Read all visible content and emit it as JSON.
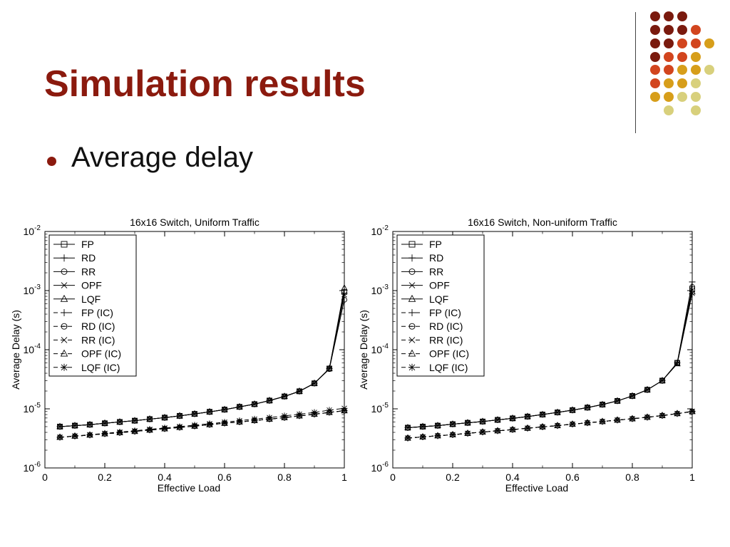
{
  "slide": {
    "title": "Simulation results",
    "bullet": "Average delay",
    "colors": {
      "title": "#8b1a0e",
      "bullet": "#8b1a0e"
    },
    "dot_palette": [
      "#7a1a0e",
      "#d2451e",
      "#d79e1a",
      "#d8d07c"
    ]
  },
  "chart_data": [
    {
      "type": "line",
      "title": "16x16 Switch, Uniform Traffic",
      "xlabel": "Effective Load",
      "ylabel": "Average Delay (s)",
      "xlim": [
        0,
        1
      ],
      "ylim": [
        1e-06,
        0.01
      ],
      "yscale": "log",
      "xticks": [
        "0",
        "0.2",
        "0.4",
        "0.6",
        "0.8",
        "1"
      ],
      "yticks": [
        {
          "base": "10",
          "exp": "-2"
        },
        {
          "base": "10",
          "exp": "-3"
        },
        {
          "base": "10",
          "exp": "-4"
        },
        {
          "base": "10",
          "exp": "-5"
        },
        {
          "base": "10",
          "exp": "-6"
        }
      ],
      "legend_position": "top-left",
      "grid": false,
      "x": [
        0.05,
        0.1,
        0.15,
        0.2,
        0.25,
        0.3,
        0.35,
        0.4,
        0.45,
        0.5,
        0.55,
        0.6,
        0.65,
        0.7,
        0.75,
        0.8,
        0.85,
        0.9,
        0.95,
        1.0
      ],
      "series": [
        {
          "name": "FP",
          "dash": "solid",
          "marker": "square",
          "values": [
            5e-06,
            5.2e-06,
            5.4e-06,
            5.7e-06,
            6e-06,
            6.3e-06,
            6.7e-06,
            7.1e-06,
            7.6e-06,
            8.2e-06,
            8.9e-06,
            9.7e-06,
            1.08e-05,
            1.2e-05,
            1.38e-05,
            1.62e-05,
            1.98e-05,
            2.7e-05,
            4.8e-05,
            0.00095
          ]
        },
        {
          "name": "RD",
          "dash": "solid",
          "marker": "plus",
          "values": [
            5e-06,
            5.2e-06,
            5.4e-06,
            5.7e-06,
            6e-06,
            6.3e-06,
            6.7e-06,
            7.1e-06,
            7.6e-06,
            8.2e-06,
            8.9e-06,
            9.7e-06,
            1.08e-05,
            1.2e-05,
            1.38e-05,
            1.62e-05,
            1.98e-05,
            2.7e-05,
            4.8e-05,
            0.0009
          ]
        },
        {
          "name": "RR",
          "dash": "solid",
          "marker": "circle",
          "values": [
            5e-06,
            5.2e-06,
            5.4e-06,
            5.7e-06,
            6e-06,
            6.3e-06,
            6.7e-06,
            7.1e-06,
            7.6e-06,
            8.2e-06,
            8.9e-06,
            9.7e-06,
            1.08e-05,
            1.2e-05,
            1.38e-05,
            1.62e-05,
            1.98e-05,
            2.7e-05,
            4.7e-05,
            0.0007
          ]
        },
        {
          "name": "OPF",
          "dash": "solid",
          "marker": "x",
          "values": [
            5e-06,
            5.2e-06,
            5.4e-06,
            5.7e-06,
            6e-06,
            6.3e-06,
            6.7e-06,
            7.1e-06,
            7.6e-06,
            8.2e-06,
            8.9e-06,
            9.7e-06,
            1.08e-05,
            1.2e-05,
            1.38e-05,
            1.62e-05,
            1.98e-05,
            2.7e-05,
            4.8e-05,
            0.00085
          ]
        },
        {
          "name": "LQF",
          "dash": "solid",
          "marker": "triangle",
          "values": [
            5e-06,
            5.2e-06,
            5.4e-06,
            5.7e-06,
            6e-06,
            6.3e-06,
            6.7e-06,
            7.1e-06,
            7.6e-06,
            8.2e-06,
            8.9e-06,
            9.7e-06,
            1.08e-05,
            1.2e-05,
            1.38e-05,
            1.62e-05,
            1.98e-05,
            2.7e-05,
            4.8e-05,
            0.0011
          ]
        },
        {
          "name": "FP (IC)",
          "dash": "dashed",
          "marker": "plus",
          "values": [
            3.3e-06,
            3.45e-06,
            3.6e-06,
            3.78e-06,
            3.95e-06,
            4.15e-06,
            4.38e-06,
            4.6e-06,
            4.85e-06,
            5.1e-06,
            5.4e-06,
            5.7e-06,
            6e-06,
            6.35e-06,
            6.7e-06,
            7.1e-06,
            7.6e-06,
            8.1e-06,
            8.7e-06,
            9.3e-06
          ]
        },
        {
          "name": "RD (IC)",
          "dash": "dashed",
          "marker": "circle-minus",
          "values": [
            3.3e-06,
            3.45e-06,
            3.6e-06,
            3.78e-06,
            3.95e-06,
            4.15e-06,
            4.38e-06,
            4.6e-06,
            4.85e-06,
            5.1e-06,
            5.4e-06,
            5.7e-06,
            6e-06,
            6.35e-06,
            6.7e-06,
            7.1e-06,
            7.6e-06,
            8.1e-06,
            8.7e-06,
            9.3e-06
          ]
        },
        {
          "name": "RR (IC)",
          "dash": "dashed",
          "marker": "x",
          "values": [
            3.3e-06,
            3.45e-06,
            3.6e-06,
            3.78e-06,
            3.95e-06,
            4.15e-06,
            4.38e-06,
            4.6e-06,
            4.85e-06,
            5.1e-06,
            5.4e-06,
            5.7e-06,
            6e-06,
            6.35e-06,
            6.7e-06,
            7.1e-06,
            7.6e-06,
            8.1e-06,
            8.7e-06,
            9.3e-06
          ]
        },
        {
          "name": "OPF (IC)",
          "dash": "dashed",
          "marker": "triangle",
          "values": [
            3.3e-06,
            3.45e-06,
            3.6e-06,
            3.78e-06,
            3.95e-06,
            4.15e-06,
            4.38e-06,
            4.6e-06,
            4.85e-06,
            5.1e-06,
            5.4e-06,
            5.7e-06,
            6e-06,
            6.35e-06,
            6.7e-06,
            7.1e-06,
            7.6e-06,
            8.1e-06,
            8.7e-06,
            9.3e-06
          ]
        },
        {
          "name": "LQF (IC)",
          "dash": "dashed",
          "marker": "asterisk",
          "values": [
            3.3e-06,
            3.48e-06,
            3.65e-06,
            3.85e-06,
            4.05e-06,
            4.25e-06,
            4.5e-06,
            4.75e-06,
            5e-06,
            5.3e-06,
            5.6e-06,
            5.95e-06,
            6.3e-06,
            6.7e-06,
            7.1e-06,
            7.6e-06,
            8.1e-06,
            8.7e-06,
            9.5e-06,
            1.02e-05
          ]
        }
      ]
    },
    {
      "type": "line",
      "title": "16x16 Switch, Non-uniform Traffic",
      "xlabel": "Effective Load",
      "ylabel": "Average Delay (s)",
      "xlim": [
        0,
        1
      ],
      "ylim": [
        1e-06,
        0.01
      ],
      "yscale": "log",
      "xticks": [
        "0",
        "0.2",
        "0.4",
        "0.6",
        "0.8",
        "1"
      ],
      "yticks": [
        {
          "base": "10",
          "exp": "-2"
        },
        {
          "base": "10",
          "exp": "-3"
        },
        {
          "base": "10",
          "exp": "-4"
        },
        {
          "base": "10",
          "exp": "-5"
        },
        {
          "base": "10",
          "exp": "-6"
        }
      ],
      "legend_position": "top-left",
      "grid": false,
      "x": [
        0.05,
        0.1,
        0.15,
        0.2,
        0.25,
        0.3,
        0.35,
        0.4,
        0.45,
        0.5,
        0.55,
        0.6,
        0.65,
        0.7,
        0.75,
        0.8,
        0.85,
        0.9,
        0.95,
        1.0
      ],
      "series": [
        {
          "name": "FP",
          "dash": "solid",
          "marker": "square",
          "values": [
            4.8e-06,
            5e-06,
            5.2e-06,
            5.5e-06,
            5.8e-06,
            6.1e-06,
            6.5e-06,
            6.9e-06,
            7.4e-06,
            8e-06,
            8.7e-06,
            9.5e-06,
            1.05e-05,
            1.18e-05,
            1.36e-05,
            1.65e-05,
            2.1e-05,
            3e-05,
            6e-05,
            0.00105
          ]
        },
        {
          "name": "RD",
          "dash": "solid",
          "marker": "plus",
          "values": [
            4.8e-06,
            5e-06,
            5.2e-06,
            5.5e-06,
            5.8e-06,
            6.1e-06,
            6.5e-06,
            6.9e-06,
            7.4e-06,
            8e-06,
            8.7e-06,
            9.5e-06,
            1.05e-05,
            1.18e-05,
            1.36e-05,
            1.65e-05,
            2.1e-05,
            3e-05,
            6e-05,
            0.0014
          ]
        },
        {
          "name": "RR",
          "dash": "solid",
          "marker": "circle",
          "values": [
            4.8e-06,
            5e-06,
            5.2e-06,
            5.5e-06,
            5.8e-06,
            6.1e-06,
            6.5e-06,
            6.9e-06,
            7.4e-06,
            8e-06,
            8.7e-06,
            9.5e-06,
            1.05e-05,
            1.18e-05,
            1.36e-05,
            1.65e-05,
            2.1e-05,
            3e-05,
            6e-05,
            0.00115
          ]
        },
        {
          "name": "OPF",
          "dash": "solid",
          "marker": "x",
          "values": [
            4.8e-06,
            5e-06,
            5.2e-06,
            5.5e-06,
            5.8e-06,
            6.1e-06,
            6.5e-06,
            6.9e-06,
            7.4e-06,
            8e-06,
            8.7e-06,
            9.5e-06,
            1.05e-05,
            1.18e-05,
            1.36e-05,
            1.65e-05,
            2.1e-05,
            3e-05,
            5.8e-05,
            0.0009
          ]
        },
        {
          "name": "LQF",
          "dash": "solid",
          "marker": "triangle",
          "values": [
            4.8e-06,
            5e-06,
            5.2e-06,
            5.5e-06,
            5.8e-06,
            6.1e-06,
            6.5e-06,
            6.9e-06,
            7.4e-06,
            8e-06,
            8.7e-06,
            9.5e-06,
            1.05e-05,
            1.18e-05,
            1.36e-05,
            1.65e-05,
            2.1e-05,
            3e-05,
            5.8e-05,
            0.00095
          ]
        },
        {
          "name": "FP (IC)",
          "dash": "dashed",
          "marker": "plus",
          "values": [
            3.2e-06,
            3.35e-06,
            3.5e-06,
            3.65e-06,
            3.85e-06,
            4.05e-06,
            4.25e-06,
            4.45e-06,
            4.7e-06,
            4.95e-06,
            5.2e-06,
            5.5e-06,
            5.8e-06,
            6.1e-06,
            6.45e-06,
            6.8e-06,
            7.2e-06,
            7.7e-06,
            8.3e-06,
            9e-06
          ]
        },
        {
          "name": "RD (IC)",
          "dash": "dashed",
          "marker": "circle-minus",
          "values": [
            3.2e-06,
            3.35e-06,
            3.5e-06,
            3.65e-06,
            3.85e-06,
            4.05e-06,
            4.25e-06,
            4.45e-06,
            4.7e-06,
            4.95e-06,
            5.2e-06,
            5.5e-06,
            5.8e-06,
            6.1e-06,
            6.45e-06,
            6.8e-06,
            7.2e-06,
            7.7e-06,
            8.3e-06,
            9e-06
          ]
        },
        {
          "name": "RR (IC)",
          "dash": "dashed",
          "marker": "x",
          "values": [
            3.2e-06,
            3.35e-06,
            3.5e-06,
            3.65e-06,
            3.85e-06,
            4.05e-06,
            4.25e-06,
            4.45e-06,
            4.7e-06,
            4.95e-06,
            5.2e-06,
            5.5e-06,
            5.8e-06,
            6.1e-06,
            6.45e-06,
            6.8e-06,
            7.2e-06,
            7.7e-06,
            8.3e-06,
            9e-06
          ]
        },
        {
          "name": "OPF (IC)",
          "dash": "dashed",
          "marker": "triangle",
          "values": [
            3.2e-06,
            3.35e-06,
            3.5e-06,
            3.65e-06,
            3.85e-06,
            4.05e-06,
            4.25e-06,
            4.45e-06,
            4.7e-06,
            4.95e-06,
            5.2e-06,
            5.5e-06,
            5.8e-06,
            6.1e-06,
            6.45e-06,
            6.8e-06,
            7.2e-06,
            7.7e-06,
            8.3e-06,
            9e-06
          ]
        },
        {
          "name": "LQF (IC)",
          "dash": "dashed",
          "marker": "asterisk",
          "values": [
            3.2e-06,
            3.35e-06,
            3.5e-06,
            3.65e-06,
            3.85e-06,
            4.05e-06,
            4.25e-06,
            4.45e-06,
            4.7e-06,
            4.95e-06,
            5.2e-06,
            5.5e-06,
            5.8e-06,
            6.1e-06,
            6.45e-06,
            6.8e-06,
            7.2e-06,
            7.7e-06,
            8.3e-06,
            9.1e-06
          ]
        }
      ]
    }
  ]
}
